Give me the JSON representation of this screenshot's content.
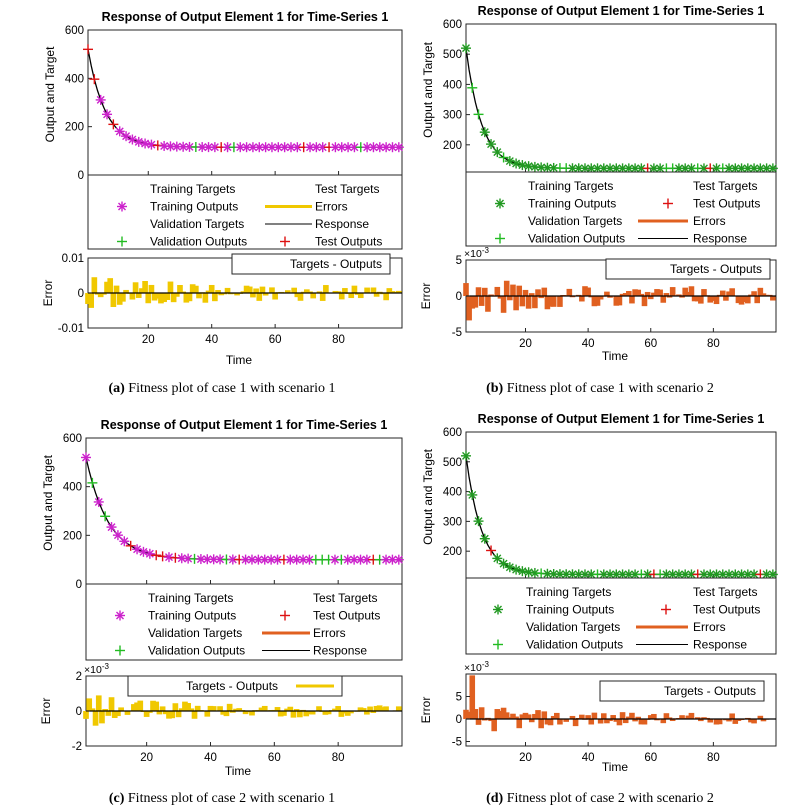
{
  "colors": {
    "training": "#cc22cc",
    "training_alt": "#229922",
    "validation": "#22bb22",
    "test": "#dd1111",
    "errors_yellow": "#f0c800",
    "errors_orange": "#e06020",
    "response": "#000000"
  },
  "legend_labels": {
    "training_targets": "Training Targets",
    "training_outputs": "Training Outputs",
    "validation_targets": "Validation Targets",
    "validation_outputs": "Validation Outputs",
    "test_targets": "Test Targets",
    "test_outputs": "Test Outputs",
    "errors": "Errors",
    "response": "Response",
    "targets_outputs": "Targets - Outputs"
  },
  "chart_data": [
    {
      "type": "line",
      "title": "Response of Output Element 1 for Time-Series 1",
      "ylabel": "Output and Target",
      "xlabel": "Time",
      "error_ylabel": "Error",
      "ylim": [
        0,
        600
      ],
      "yticks": [
        "0",
        "200",
        "400",
        "600"
      ],
      "error_ylim": [
        -0.01,
        0.01
      ],
      "error_yticks": [
        "-0.01",
        "0",
        "0.01"
      ],
      "error_exponent": "",
      "xticks": [
        "20",
        "40",
        "60",
        "80"
      ],
      "xlim": [
        1,
        100
      ],
      "initial": 520,
      "final": 115,
      "decay": 5.5,
      "error_scale": 0.006,
      "caption_label": "(a)",
      "caption_text": " Fitness plot of case 1 with scenario 1"
    },
    {
      "type": "line",
      "title": "Response of Output Element 1 for Time-Series 1",
      "ylabel": "Output and Target",
      "xlabel": "Time",
      "error_ylabel": "Error",
      "ylim": [
        110,
        600
      ],
      "yticks": [
        "200",
        "300",
        "400",
        "500",
        "600"
      ],
      "error_ylim": [
        -5,
        5
      ],
      "error_yticks": [
        "-5",
        "0",
        "5"
      ],
      "error_exponent": "×10",
      "error_exponent_power": "-3",
      "xticks": [
        "20",
        "40",
        "60",
        "80"
      ],
      "xlim": [
        1,
        100
      ],
      "initial": 520,
      "final": 122,
      "decay": 5.0,
      "error_scale": 3.5,
      "caption_label": "(b)",
      "caption_text": " Fitness plot of case 1 with scenario 2"
    },
    {
      "type": "line",
      "title": "Response of Output Element 1 for Time-Series 1",
      "ylabel": "Output and Target",
      "xlabel": "Time",
      "error_ylabel": "Error",
      "ylim": [
        0,
        600
      ],
      "yticks": [
        "0",
        "200",
        "400",
        "600"
      ],
      "error_ylim": [
        -2,
        2
      ],
      "error_yticks": [
        "-2",
        "0",
        "2"
      ],
      "error_exponent": "×10",
      "error_exponent_power": "-3",
      "xticks": [
        "20",
        "40",
        "60",
        "80"
      ],
      "xlim": [
        1,
        100
      ],
      "initial": 520,
      "final": 100,
      "decay": 7.0,
      "error_scale": 1.0,
      "caption_label": "(c)",
      "caption_text": " Fitness plot of case 2 with scenario 1"
    },
    {
      "type": "line",
      "title": "Response of Output Element 1 for Time-Series 1",
      "ylabel": "Output and Target",
      "xlabel": "Time",
      "error_ylabel": "Error",
      "ylim": [
        110,
        600
      ],
      "yticks": [
        "200",
        "300",
        "400",
        "500",
        "600"
      ],
      "error_ylim": [
        -6,
        10
      ],
      "error_yticks": [
        "-5",
        "0",
        "5"
      ],
      "error_exponent": "×10",
      "error_exponent_power": "-3",
      "xticks": [
        "20",
        "40",
        "60",
        "80"
      ],
      "xlim": [
        1,
        100
      ],
      "initial": 520,
      "final": 122,
      "decay": 5.0,
      "error_scale": 3.5,
      "caption_label": "(d)",
      "caption_text": " Fitness plot of case 2 with scenario 2"
    }
  ]
}
